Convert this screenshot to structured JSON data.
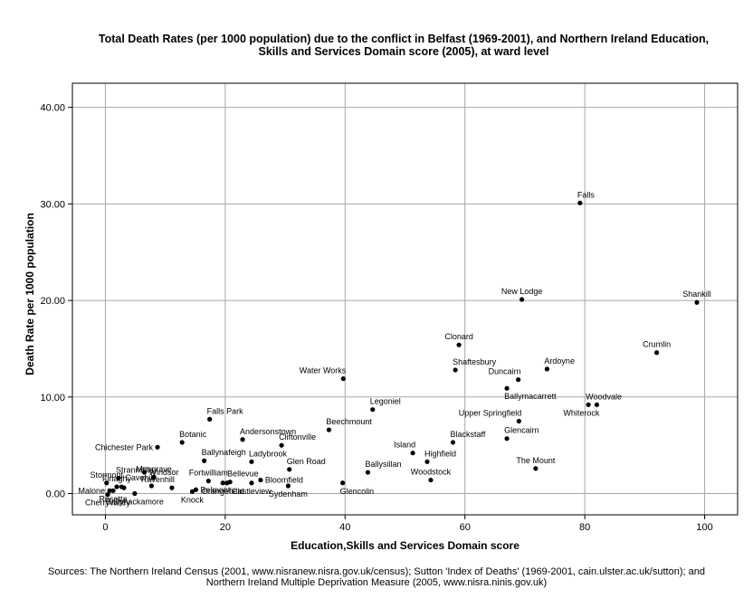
{
  "chart_data": {
    "type": "scatter",
    "title_lines": [
      "Total Death Rates (per 1000 population) due to the conflict in Belfast (1969-2001), and Northern Ireland Education,",
      "Skills and Services Domain score (2005), at ward level"
    ],
    "xlabel": "Education,Skills and Services Domain score",
    "ylabel": "Death Rate per 1000 population",
    "xlim": [
      -5.5,
      105.5
    ],
    "ylim": [
      -2.2,
      42.5
    ],
    "xticks": [
      0,
      20,
      40,
      60,
      80,
      100
    ],
    "xtick_labels": [
      "0",
      "20",
      "40",
      "60",
      "80",
      "100"
    ],
    "yticks": [
      0,
      10,
      20,
      30,
      40
    ],
    "ytick_labels": [
      "0.00",
      "10.00",
      "20.00",
      "30.00",
      "40.00"
    ],
    "grid": true,
    "legend": "none",
    "marker_color": "#000000",
    "points": [
      {
        "label": "Falls",
        "x": 79.2,
        "y": 30.1,
        "lp": "ne"
      },
      {
        "label": "Shankill",
        "x": 98.7,
        "y": 19.8,
        "lp": "n"
      },
      {
        "label": "New Lodge",
        "x": 69.5,
        "y": 20.1,
        "lp": "n"
      },
      {
        "label": "Crumlin",
        "x": 92.0,
        "y": 14.6,
        "lp": "n"
      },
      {
        "label": "Clonard",
        "x": 59.0,
        "y": 15.4,
        "lp": "n"
      },
      {
        "label": "Shaftesbury",
        "x": 58.4,
        "y": 12.8,
        "lp": "ne"
      },
      {
        "label": "Ardoyne",
        "x": 73.7,
        "y": 12.9,
        "lp": "ne"
      },
      {
        "label": "Duncairn",
        "x": 68.9,
        "y": 11.8,
        "lp": "nw"
      },
      {
        "label": "Water Works",
        "x": 39.7,
        "y": 11.9,
        "lp": "nw"
      },
      {
        "label": "Ballymacarrett",
        "x": 67.0,
        "y": 10.9,
        "lp": "se"
      },
      {
        "label": "Woodvale",
        "x": 80.6,
        "y": 9.2,
        "lp": "ne"
      },
      {
        "label": "Whiterock",
        "x": 82.0,
        "y": 9.2,
        "lp": "sw"
      },
      {
        "label": "Legoniel",
        "x": 44.6,
        "y": 8.7,
        "lp": "ne"
      },
      {
        "label": "Upper Springfield",
        "x": 69.0,
        "y": 7.5,
        "lp": "nw"
      },
      {
        "label": "Falls Park",
        "x": 17.4,
        "y": 7.7,
        "lp": "ne"
      },
      {
        "label": "Beechmount",
        "x": 37.3,
        "y": 6.6,
        "lp": "ne"
      },
      {
        "label": "Andersonstown",
        "x": 22.9,
        "y": 5.6,
        "lp": "ne"
      },
      {
        "label": "Glencairn",
        "x": 67.0,
        "y": 5.7,
        "lp": "ne"
      },
      {
        "label": "Botanic",
        "x": 12.8,
        "y": 5.3,
        "lp": "ne"
      },
      {
        "label": "Cliftonville",
        "x": 29.4,
        "y": 5.0,
        "lp": "ne"
      },
      {
        "label": "Blackstaff",
        "x": 58.0,
        "y": 5.3,
        "lp": "ne"
      },
      {
        "label": "Island",
        "x": 51.3,
        "y": 4.2,
        "lp": "nw"
      },
      {
        "label": "Chichester Park",
        "x": 8.7,
        "y": 4.8,
        "lp": "w"
      },
      {
        "label": "Highfield",
        "x": 53.7,
        "y": 3.3,
        "lp": "ne"
      },
      {
        "label": "Ballynafeigh",
        "x": 16.5,
        "y": 3.4,
        "lp": "ne"
      },
      {
        "label": "Ladybrook",
        "x": 24.4,
        "y": 3.3,
        "lp": "ne"
      },
      {
        "label": "The Mount",
        "x": 71.8,
        "y": 2.6,
        "lp": "n"
      },
      {
        "label": "Glen Road",
        "x": 30.7,
        "y": 2.5,
        "lp": "ne"
      },
      {
        "label": "Ballysillan",
        "x": 43.8,
        "y": 2.2,
        "lp": "ne"
      },
      {
        "label": "Woodstock",
        "x": 54.3,
        "y": 1.4,
        "lp": "n"
      },
      {
        "label": "Bellevue",
        "x": 20.8,
        "y": 1.2,
        "lp": "ne"
      },
      {
        "label": "Fortwilliam",
        "x": 17.2,
        "y": 1.3,
        "lp": "n"
      },
      {
        "label": "Bloomfield",
        "x": 25.9,
        "y": 1.4,
        "lp": "e"
      },
      {
        "label": "Windsor",
        "x": 6.5,
        "y": 2.2,
        "lp": "e"
      },
      {
        "label": "Musgrave",
        "x": 8.1,
        "y": 1.7,
        "lp": "n"
      },
      {
        "label": "Cavehill",
        "x": 7.7,
        "y": 0.8,
        "lp": "nw"
      },
      {
        "label": "Ravenhill",
        "x": 11.1,
        "y": 0.6,
        "lp": "nw"
      },
      {
        "label": "Stranmillis",
        "x": 2.2,
        "y": 1.6,
        "lp": "ne"
      },
      {
        "label": "Finaghy",
        "x": 1.9,
        "y": 0.7,
        "lp": "n"
      },
      {
        "label": "Stormont",
        "x": 0.2,
        "y": 1.1,
        "lp": "n"
      },
      {
        "label": "Malone",
        "x": 0.7,
        "y": 0.3,
        "lp": "w"
      },
      {
        "label": "Rosetta",
        "x": 1.3,
        "y": 0.3,
        "lp": "s"
      },
      {
        "label": "Cherryvalley",
        "x": 0.4,
        "y": -0.1,
        "lp": "s"
      },
      {
        "label": "Ballyhackamore",
        "x": 4.9,
        "y": 0.0,
        "lp": "s"
      },
      {
        "label": "Knock",
        "x": 14.5,
        "y": 0.2,
        "lp": "s"
      },
      {
        "label": "Belmont",
        "x": 15.1,
        "y": 0.4,
        "lp": "e"
      },
      {
        "label": "Orangefield",
        "x": 19.6,
        "y": 1.1,
        "lp": "s"
      },
      {
        "label": "Castleview",
        "x": 24.4,
        "y": 1.1,
        "lp": "s"
      },
      {
        "label": "Sydenham",
        "x": 30.5,
        "y": 0.8,
        "lp": "s"
      },
      {
        "label": "Glencolin",
        "x": 39.6,
        "y": 1.1,
        "lp": "se"
      },
      {
        "label": "",
        "x": 2.7,
        "y": 0.7,
        "lp": "n"
      },
      {
        "label": "",
        "x": 3.1,
        "y": 0.6,
        "lp": "n"
      },
      {
        "label": "",
        "x": 20.3,
        "y": 1.1,
        "lp": "n"
      }
    ]
  },
  "sources_lines": [
    "Sources: The Northern Ireland Census (2001, www.nisranew.nisra.gov.uk/census); Sutton 'Index of Deaths' (1969-2001, cain.ulster.ac.uk/sutton); and",
    "Northern Ireland Multiple Deprivation Measure (2005, www.nisra.ninis.gov.uk)"
  ]
}
